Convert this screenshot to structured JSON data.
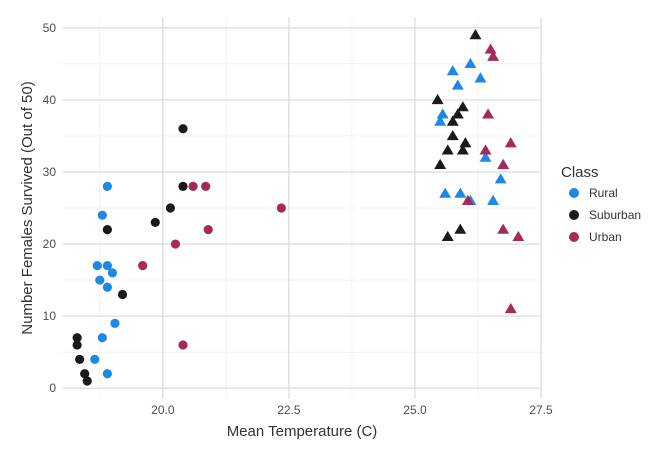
{
  "chart_data": {
    "type": "scatter",
    "xlabel": "Mean Temperature (C)",
    "ylabel": "Number Females Survived (Out of 50)",
    "xlim": [
      18.0,
      27.5
    ],
    "ylim": [
      -1.5,
      51.5
    ],
    "x_ticks": [
      20.0,
      22.5,
      25.0,
      27.5
    ],
    "x_tick_labels": [
      "20.0",
      "22.5",
      "25.0",
      "27.5"
    ],
    "y_ticks": [
      0,
      10,
      20,
      30,
      40,
      50
    ],
    "y_tick_labels": [
      "0",
      "10",
      "20",
      "30",
      "40",
      "50"
    ],
    "grid": true,
    "legend": {
      "title": "Class",
      "position": "right",
      "entries": [
        {
          "label": "Rural",
          "color": "#1e88e5"
        },
        {
          "label": "Suburban",
          "color": "#1a1a1a"
        },
        {
          "label": "Urban",
          "color": "#a52a5a"
        }
      ]
    },
    "series": [
      {
        "name": "Rural",
        "color": "#1e88e5",
        "circles": [
          [
            18.9,
            28
          ],
          [
            18.8,
            24
          ],
          [
            18.7,
            17
          ],
          [
            18.9,
            17
          ],
          [
            19.0,
            16
          ],
          [
            18.75,
            15
          ],
          [
            18.9,
            14
          ],
          [
            19.05,
            9
          ],
          [
            18.8,
            7
          ],
          [
            18.65,
            4
          ],
          [
            18.9,
            2
          ]
        ],
        "triangles": [
          [
            26.1,
            45
          ],
          [
            25.75,
            44
          ],
          [
            26.3,
            43
          ],
          [
            25.85,
            42
          ],
          [
            25.55,
            38
          ],
          [
            25.5,
            37
          ],
          [
            26.4,
            32
          ],
          [
            26.7,
            29
          ],
          [
            25.6,
            27
          ],
          [
            25.9,
            27
          ],
          [
            26.1,
            26
          ],
          [
            26.55,
            26
          ]
        ]
      },
      {
        "name": "Suburban",
        "color": "#1a1a1a",
        "circles": [
          [
            20.4,
            36
          ],
          [
            20.4,
            28
          ],
          [
            20.15,
            25
          ],
          [
            19.85,
            23
          ],
          [
            18.9,
            22
          ],
          [
            19.2,
            13
          ],
          [
            18.3,
            7
          ],
          [
            18.3,
            6
          ],
          [
            18.35,
            4
          ],
          [
            18.45,
            2
          ],
          [
            18.5,
            1
          ]
        ],
        "triangles": [
          [
            26.2,
            49
          ],
          [
            25.45,
            40
          ],
          [
            25.95,
            39
          ],
          [
            25.85,
            38
          ],
          [
            25.75,
            37
          ],
          [
            25.75,
            35
          ],
          [
            26.0,
            34
          ],
          [
            25.95,
            33
          ],
          [
            25.65,
            33
          ],
          [
            25.5,
            31
          ],
          [
            25.9,
            22
          ],
          [
            25.65,
            21
          ]
        ]
      },
      {
        "name": "Urban",
        "color": "#a52a5a",
        "circles": [
          [
            20.6,
            28
          ],
          [
            20.85,
            28
          ],
          [
            22.35,
            25
          ],
          [
            20.9,
            22
          ],
          [
            20.25,
            20
          ],
          [
            19.6,
            17
          ],
          [
            20.4,
            6
          ]
        ],
        "triangles": [
          [
            26.5,
            47
          ],
          [
            26.55,
            46
          ],
          [
            26.45,
            38
          ],
          [
            26.9,
            34
          ],
          [
            26.4,
            33
          ],
          [
            26.75,
            31
          ],
          [
            26.05,
            26
          ],
          [
            26.75,
            22
          ],
          [
            27.05,
            21
          ],
          [
            26.9,
            11
          ]
        ]
      }
    ]
  }
}
